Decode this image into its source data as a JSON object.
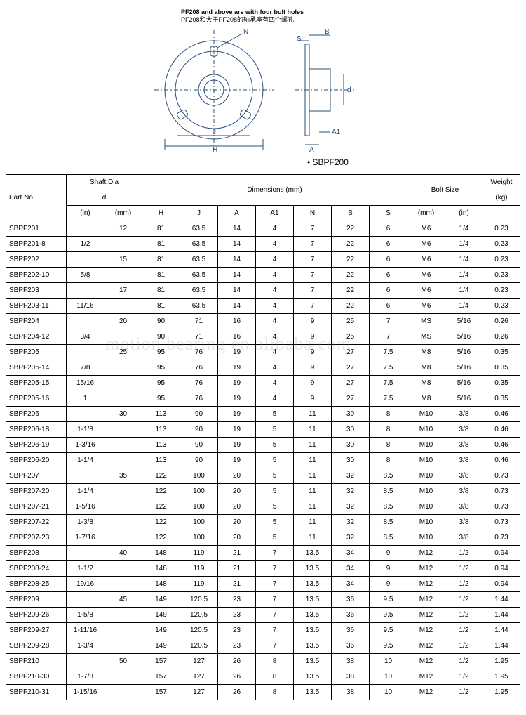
{
  "diagram": {
    "caption_en": "PF208 and above are with four bolt holes",
    "caption_cn": "PF208和大于PF208的轴承座有四个螺孔",
    "model_label": "• SBPF200",
    "dim_labels": [
      "N",
      "S",
      "B",
      "A",
      "A1",
      "d",
      "J",
      "H"
    ]
  },
  "table": {
    "headers": {
      "part_no": "Part No.",
      "shaft_dia": "Shaft Dia",
      "d": "d",
      "in": "(in)",
      "mm": "(mm)",
      "dimensions": "Dimensions (mm)",
      "H": "H",
      "J": "J",
      "A": "A",
      "A1": "A1",
      "N": "N",
      "B": "B",
      "S": "S",
      "bolt_size": "Bolt Size",
      "weight": "Weight",
      "kg": "(kg)"
    },
    "rows": [
      [
        "SBPF201",
        "",
        "12",
        "81",
        "63.5",
        "14",
        "4",
        "7",
        "22",
        "6",
        "M6",
        "1/4",
        "0.23"
      ],
      [
        "SBPF201-8",
        "1/2",
        "",
        "81",
        "63.5",
        "14",
        "4",
        "7",
        "22",
        "6",
        "M6",
        "1/4",
        "0.23"
      ],
      [
        "SBPF202",
        "",
        "15",
        "81",
        "63.5",
        "14",
        "4",
        "7",
        "22",
        "6",
        "M6",
        "1/4",
        "0.23"
      ],
      [
        "SBPF202-10",
        "5/8",
        "",
        "81",
        "63.5",
        "14",
        "4",
        "7",
        "22",
        "6",
        "M6",
        "1/4",
        "0.23"
      ],
      [
        "SBPF203",
        "",
        "17",
        "81",
        "63.5",
        "14",
        "4",
        "7",
        "22",
        "6",
        "M6",
        "1/4",
        "0.23"
      ],
      [
        "SBPF203-11",
        "11/16",
        "",
        "81",
        "63.5",
        "14",
        "4",
        "7",
        "22",
        "6",
        "M6",
        "1/4",
        "0.23"
      ],
      [
        "SBPF204",
        "",
        "20",
        "90",
        "71",
        "16",
        "4",
        "9",
        "25",
        "7",
        "MS",
        "5/16",
        "0.26"
      ],
      [
        "SBPF204-12",
        "3/4",
        "",
        "90",
        "71",
        "16",
        "4",
        "9",
        "25",
        "7",
        "MS",
        "5/16",
        "0.26"
      ],
      [
        "SBPF205",
        "",
        "25",
        "95",
        "76",
        "19",
        "4",
        "9",
        "27",
        "7.5",
        "M8",
        "5/16",
        "0.35"
      ],
      [
        "SBPF205-14",
        "7/8",
        "",
        "95",
        "76",
        "19",
        "4",
        "9",
        "27",
        "7.5",
        "M8",
        "5/16",
        "0.35"
      ],
      [
        "SBPF205-15",
        "15/16",
        "",
        "95",
        "76",
        "19",
        "4",
        "9",
        "27",
        "7.5",
        "M8",
        "5/16",
        "0.35"
      ],
      [
        "SBPF205-16",
        "1",
        "",
        "95",
        "76",
        "19",
        "4",
        "9",
        "27",
        "7.5",
        "M8",
        "5/16",
        "0.35"
      ],
      [
        "SBPF206",
        "",
        "30",
        "113",
        "90",
        "19",
        "5",
        "11",
        "30",
        "8",
        "M10",
        "3/8",
        "0.46"
      ],
      [
        "SBPF206-18",
        "1-1/8",
        "",
        "113",
        "90",
        "19",
        "5",
        "11",
        "30",
        "8",
        "M10",
        "3/8",
        "0.46"
      ],
      [
        "SBPF206-19",
        "1-3/16",
        "",
        "113",
        "90",
        "19",
        "5",
        "11",
        "30",
        "8",
        "M10",
        "3/8",
        "0.46"
      ],
      [
        "SBPF206-20",
        "1-1/4",
        "",
        "113",
        "90",
        "19",
        "5",
        "11",
        "30",
        "8",
        "M10",
        "3/8",
        "0.46"
      ],
      [
        "SBPF207",
        "",
        "35",
        "122",
        "100",
        "20",
        "5",
        "11",
        "32",
        "8.5",
        "M10",
        "3/8",
        "0.73"
      ],
      [
        "SBPF207-20",
        "1-1/4",
        "",
        "122",
        "100",
        "20",
        "5",
        "11",
        "32",
        "8.5",
        "M10",
        "3/8",
        "0.73"
      ],
      [
        "SBPF207-21",
        "1-5/16",
        "",
        "122",
        "100",
        "20",
        "5",
        "11",
        "32",
        "8.5",
        "M10",
        "3/8",
        "0.73"
      ],
      [
        "SBPF207-22",
        "1-3/8",
        "",
        "122",
        "100",
        "20",
        "5",
        "11",
        "32",
        "8.5",
        "M10",
        "3/8",
        "0.73"
      ],
      [
        "SBPF207-23",
        "1-7/16",
        "",
        "122",
        "100",
        "20",
        "5",
        "11",
        "32",
        "8.5",
        "M10",
        "3/8",
        "0.73"
      ],
      [
        "SBPF208",
        "",
        "40",
        "148",
        "119",
        "21",
        "7",
        "13.5",
        "34",
        "9",
        "M12",
        "1/2",
        "0.94"
      ],
      [
        "SBPF208-24",
        "1-1/2",
        "",
        "148",
        "119",
        "21",
        "7",
        "13.5",
        "34",
        "9",
        "M12",
        "1/2",
        "0.94"
      ],
      [
        "SBPF208-25",
        "19/16",
        "",
        "148",
        "119",
        "21",
        "7",
        "13.5",
        "34",
        "9",
        "M12",
        "1/2",
        "0.94"
      ],
      [
        "SBPF209",
        "",
        "45",
        "149",
        "120.5",
        "23",
        "7",
        "13.5",
        "36",
        "9.5",
        "M12",
        "1/2",
        "1.44"
      ],
      [
        "SBPF209-26",
        "1-5/8",
        "",
        "149",
        "120.5",
        "23",
        "7",
        "13.5",
        "36",
        "9.5",
        "M12",
        "1/2",
        "1.44"
      ],
      [
        "SBPF209-27",
        "1-11/16",
        "",
        "149",
        "120.5",
        "23",
        "7",
        "13.5",
        "36",
        "9.5",
        "M12",
        "1/2",
        "1.44"
      ],
      [
        "SBPF209-28",
        "1-3/4",
        "",
        "149",
        "120.5",
        "23",
        "7",
        "13.5",
        "36",
        "9.5",
        "M12",
        "1/2",
        "1.44"
      ],
      [
        "SBPF210",
        "",
        "50",
        "157",
        "127",
        "26",
        "8",
        "13.5",
        "38",
        "10",
        "M12",
        "1/2",
        "1.95"
      ],
      [
        "SBPF210-30",
        "1-7/8",
        "",
        "157",
        "127",
        "26",
        "8",
        "13.5",
        "38",
        "10",
        "M12",
        "1/2",
        "1.95"
      ],
      [
        "SBPF210-31",
        "1-15/16",
        "",
        "157",
        "127",
        "26",
        "8",
        "13.5",
        "38",
        "10",
        "M12",
        "1/2",
        "1.95"
      ]
    ]
  },
  "style": {
    "border_color": "#000000",
    "text_color": "#000000",
    "diagram_stroke": "#2a4d7a",
    "font_size_table": 10,
    "font_size_caption": 9
  }
}
